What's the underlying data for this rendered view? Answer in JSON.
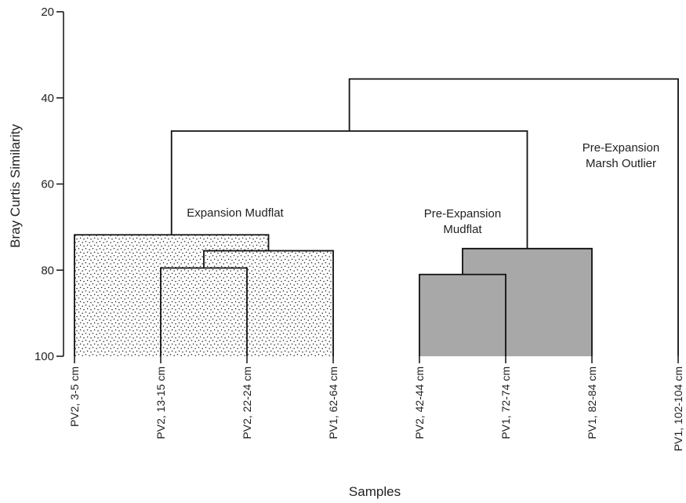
{
  "chart_data": {
    "type": "dendrogram",
    "xlabel": "Samples",
    "ylabel": "Bray Curtis Similarity",
    "ylim": [
      20,
      100
    ],
    "y_inverted": true,
    "yticks": [
      20,
      40,
      60,
      80,
      100
    ],
    "samples": [
      "PV2, 3-5 cm",
      "PV2, 13-15 cm",
      "PV2, 22-24 cm",
      "PV1, 62-64 cm",
      "PV2, 42-44 cm",
      "PV1, 72-74 cm",
      "PV1, 82-84 cm",
      "PV1, 102-104 cm"
    ],
    "merges": [
      {
        "id": "A",
        "left": 1,
        "right": 2,
        "similarity": 79.5,
        "group": "stipple"
      },
      {
        "id": "B",
        "left": "A",
        "right": 3,
        "similarity": 75.5,
        "group": "stipple"
      },
      {
        "id": "C",
        "left": 0,
        "right": "B",
        "similarity": 71.8,
        "group": "stipple"
      },
      {
        "id": "D",
        "left": 4,
        "right": 5,
        "similarity": 81.0,
        "group": "gray"
      },
      {
        "id": "E",
        "left": "D",
        "right": 6,
        "similarity": 75.0,
        "group": "gray"
      },
      {
        "id": "F",
        "left": "C",
        "right": "E",
        "similarity": 47.7,
        "group": "line"
      },
      {
        "id": "G",
        "left": "F",
        "right": 7,
        "similarity": 35.6,
        "group": "line"
      }
    ],
    "annotations": [
      {
        "text": "Expansion Mudflat",
        "lines": [
          "Expansion Mudflat"
        ]
      },
      {
        "text": "Pre-Expansion Mudflat",
        "lines": [
          "Pre-Expansion",
          "Mudflat"
        ]
      },
      {
        "text": "Pre-Expansion Marsh Outlier",
        "lines": [
          "Pre-Expansion",
          "Marsh Outlier"
        ]
      }
    ],
    "colors": {
      "line": "#111111",
      "gray_fill": "#a8a8a8",
      "stipple_dot": "#222222",
      "stipple_bg": "#ffffff"
    }
  }
}
